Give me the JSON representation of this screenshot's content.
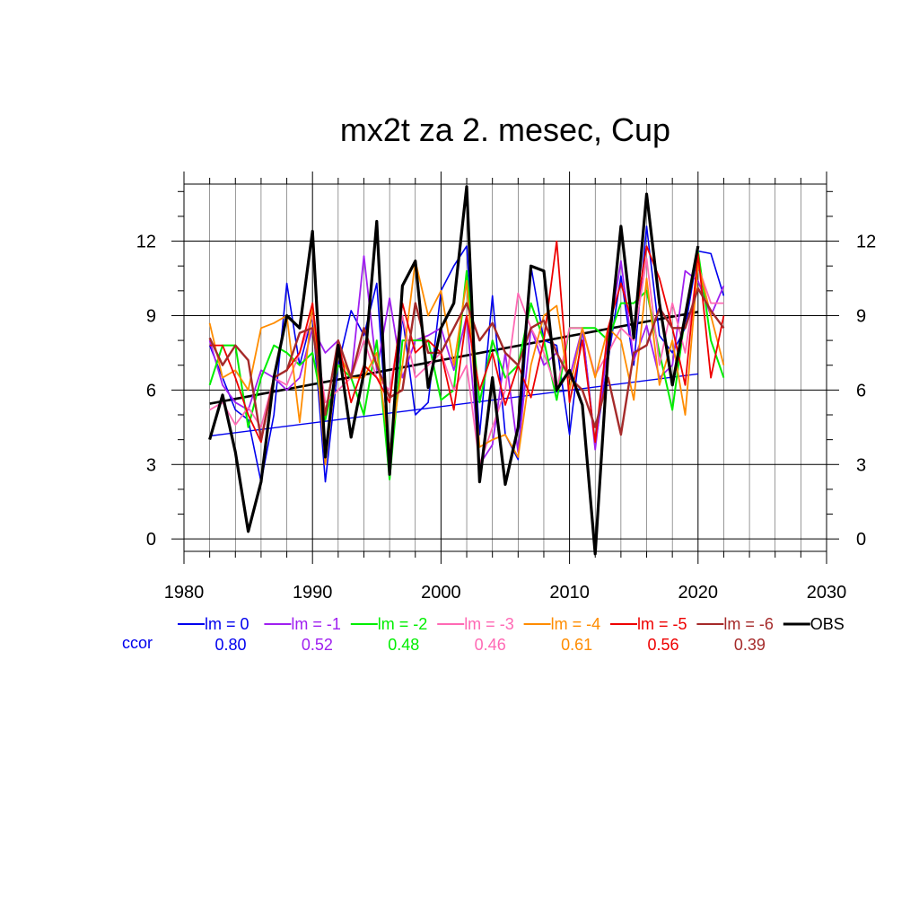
{
  "chart_data": {
    "type": "line",
    "title": "mx2t za 2. mesec, Cup",
    "xlabel": "",
    "ylabel": "",
    "xlim": [
      1980,
      2030
    ],
    "ylim": [
      -0.5,
      14.3
    ],
    "xticks": [
      1980,
      1990,
      2000,
      2010,
      2020,
      2030
    ],
    "yticks": [
      0,
      3,
      6,
      9,
      12
    ],
    "grid": true,
    "legend_position": "bottom",
    "corr_label": "ccor",
    "x": [
      1982,
      1983,
      1984,
      1985,
      1986,
      1987,
      1988,
      1989,
      1990,
      1991,
      1992,
      1993,
      1994,
      1995,
      1996,
      1997,
      1998,
      1999,
      2000,
      2001,
      2002,
      2003,
      2004,
      2005,
      2006,
      2007,
      2008,
      2009,
      2010,
      2011,
      2012,
      2013,
      2014,
      2015,
      2016,
      2017,
      2018,
      2019,
      2020,
      2021,
      2022
    ],
    "series": [
      {
        "name": "lm = 0",
        "ccor": "0.80",
        "color": "#0000ee",
        "width": 1.6,
        "values": [
          7.8,
          6.5,
          5.2,
          4.8,
          2.3,
          5.0,
          10.3,
          7.0,
          9.0,
          2.3,
          7.0,
          9.2,
          8.2,
          10.3,
          3.0,
          9.0,
          5.0,
          5.5,
          10.0,
          11.0,
          11.8,
          4.2,
          9.8,
          4.2,
          3.2,
          11.0,
          8.0,
          7.8,
          4.2,
          8.5,
          3.8,
          7.2,
          10.6,
          7.0,
          12.6,
          8.2,
          7.5,
          8.5,
          11.6,
          11.5,
          9.8
        ],
        "trend": [
          4.15,
          6.65
        ]
      },
      {
        "name": "lm = -1",
        "ccor": "0.52",
        "color": "#a020f0",
        "width": 1.8,
        "values": [
          8.0,
          6.2,
          5.5,
          5.2,
          6.8,
          6.5,
          6.0,
          6.5,
          8.5,
          7.5,
          8.0,
          6.5,
          11.4,
          6.8,
          9.7,
          6.5,
          8.0,
          8.2,
          8.5,
          6.8,
          9.0,
          3.0,
          3.8,
          7.5,
          3.5,
          8.5,
          7.0,
          7.5,
          6.5,
          8.5,
          3.6,
          8.0,
          11.2,
          7.2,
          8.6,
          6.5,
          7.0,
          10.8,
          10.4,
          9.0,
          10.2
        ]
      },
      {
        "name": "lm = -2",
        "ccor": "0.48",
        "color": "#00ee00",
        "width": 2.0,
        "values": [
          6.2,
          7.8,
          7.8,
          4.5,
          6.5,
          7.8,
          7.5,
          7.0,
          7.5,
          4.8,
          7.0,
          6.5,
          5.0,
          8.0,
          2.4,
          8.0,
          8.0,
          8.0,
          5.6,
          6.0,
          10.8,
          5.5,
          8.0,
          6.5,
          7.0,
          9.5,
          8.0,
          5.6,
          8.5,
          8.5,
          8.5,
          8.0,
          9.5,
          9.5,
          10.0,
          7.5,
          5.2,
          9.0,
          11.6,
          8.0,
          6.5
        ]
      },
      {
        "name": "lm = -3",
        "ccor": "0.46",
        "color": "#ff69b4",
        "width": 1.8,
        "values": [
          5.2,
          5.5,
          4.6,
          5.3,
          4.5,
          6.5,
          6.2,
          7.5,
          9.0,
          5.5,
          6.0,
          6.5,
          8.0,
          6.5,
          6.0,
          9.0,
          6.5,
          7.0,
          7.5,
          6.0,
          7.0,
          3.0,
          4.5,
          6.0,
          9.9,
          8.5,
          7.5,
          6.0,
          8.5,
          8.5,
          6.6,
          7.5,
          8.5,
          8.0,
          11.3,
          7.0,
          9.5,
          7.5,
          11.0,
          9.5,
          9.5
        ]
      },
      {
        "name": "lm = -4",
        "ccor": "0.61",
        "color": "#ff8c00",
        "width": 1.8,
        "values": [
          8.7,
          6.5,
          6.8,
          6.0,
          8.5,
          8.7,
          9.0,
          4.7,
          9.5,
          3.0,
          7.5,
          6.5,
          6.5,
          7.5,
          3.5,
          7.0,
          11.2,
          9.0,
          10.0,
          7.0,
          10.4,
          3.7,
          4.0,
          4.2,
          3.3,
          7.0,
          9.0,
          9.4,
          6.0,
          8.5,
          6.5,
          8.5,
          8.0,
          5.6,
          10.5,
          6.2,
          8.0,
          5.0,
          11.1,
          9.0,
          7.0
        ]
      },
      {
        "name": "lm = -5",
        "ccor": "0.56",
        "color": "#ee0000",
        "width": 1.8,
        "values": [
          7.8,
          7.8,
          6.5,
          5.0,
          3.9,
          6.5,
          6.8,
          7.5,
          9.5,
          5.0,
          8.0,
          5.5,
          7.0,
          6.5,
          5.5,
          9.5,
          7.5,
          8.0,
          7.5,
          5.2,
          9.0,
          6.0,
          7.5,
          5.4,
          7.0,
          5.7,
          8.0,
          12.0,
          5.5,
          8.0,
          3.9,
          8.5,
          10.3,
          8.5,
          11.8,
          10.5,
          8.5,
          6.2,
          11.5,
          6.5,
          9.0
        ]
      },
      {
        "name": "lm = -6",
        "ccor": "0.39",
        "color": "#a52a2a",
        "width": 2.4,
        "values": [
          8.1,
          7.0,
          7.8,
          7.2,
          4.0,
          6.5,
          6.8,
          8.3,
          8.5,
          5.0,
          8.0,
          6.5,
          8.5,
          7.0,
          5.7,
          6.0,
          9.5,
          7.5,
          7.5,
          8.5,
          9.5,
          8.0,
          8.7,
          7.5,
          7.0,
          8.5,
          8.8,
          7.5,
          6.5,
          6.0,
          4.5,
          6.5,
          4.2,
          7.5,
          7.8,
          9.3,
          8.5,
          8.5,
          10.1,
          9.2,
          8.5
        ]
      },
      {
        "name": "OBS",
        "ccor": "",
        "color": "#000000",
        "width": 3.2,
        "values": [
          4.0,
          5.8,
          3.5,
          0.3,
          2.3,
          6.5,
          9.0,
          8.5,
          12.4,
          3.3,
          7.8,
          4.1,
          6.7,
          12.8,
          2.6,
          10.2,
          11.2,
          6.1,
          8.5,
          9.5,
          14.2,
          2.3,
          6.5,
          2.2,
          4.5,
          11.0,
          10.8,
          6.0,
          6.8,
          5.4,
          -0.6,
          7.5,
          12.6,
          8.1,
          13.9,
          9.5,
          6.2,
          9.0,
          11.8,
          null,
          null
        ],
        "trend": [
          5.45,
          9.15
        ]
      }
    ]
  }
}
